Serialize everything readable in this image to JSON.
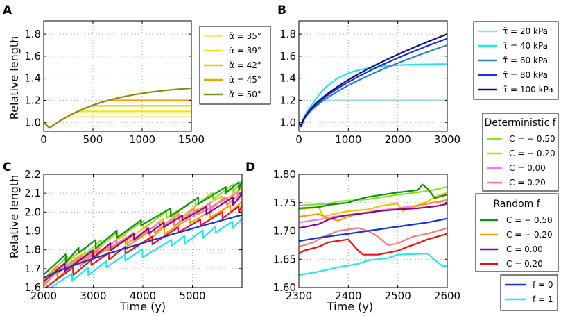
{
  "figure": {
    "shared_ylabel_top": "Relative length",
    "shared_ylabel_bottom": "Relative length",
    "xlabel_C": "Time (y)",
    "xlabel_D": "Time (y)"
  },
  "chart_data": [
    {
      "panel": "A",
      "type": "line",
      "xlim": [
        0,
        1500
      ],
      "ylim": [
        0.92,
        1.92
      ],
      "xticks": [
        0,
        500,
        1000,
        1500
      ],
      "yticks": [
        1.0,
        1.2,
        1.4,
        1.6,
        1.8
      ],
      "xtick_labels": [
        "0",
        "500",
        "1000",
        "1500"
      ],
      "ytick_labels": [
        "1.0",
        "1.2",
        "1.4",
        "1.6",
        "1.8"
      ],
      "ylabel": "Relative length",
      "legend": {
        "placement": "outside-right"
      },
      "series": [
        {
          "label": "α̃ = 35°",
          "color": "#f3ec8a",
          "plateau": 1.05
        },
        {
          "label": "α̃ = 39°",
          "color": "#f2e40e",
          "plateau": 1.1
        },
        {
          "label": "α̃ = 42°",
          "color": "#f2c300",
          "plateau": 1.15
        },
        {
          "label": "α̃ = 45°",
          "color": "#f0a000",
          "plateau": 1.2
        },
        {
          "label": "α̃ = 50°",
          "color": "#8a8a18",
          "plateau": null,
          "end": 1.31
        }
      ]
    },
    {
      "panel": "B",
      "type": "line",
      "xlim": [
        0,
        3000
      ],
      "ylim": [
        0.92,
        1.92
      ],
      "xticks": [
        0,
        1000,
        2000,
        3000
      ],
      "yticks": [
        1.0,
        1.2,
        1.4,
        1.6,
        1.8
      ],
      "xtick_labels": [
        "0",
        "1000",
        "2000",
        "3000"
      ],
      "ytick_labels": [
        "1.0",
        "1.2",
        "1.4",
        "1.6",
        "1.8"
      ],
      "legend": {
        "placement": "outside-right"
      },
      "series": [
        {
          "label": "τ̃ = 20 kPa",
          "color": "#9fd8e6",
          "plateau": 1.2,
          "tau": 120
        },
        {
          "label": "τ̃ = 40 kPa",
          "color": "#1ee6f0",
          "plateau": 1.53,
          "tau": 500
        },
        {
          "label": "τ̃ = 60 kPa",
          "color": "#2585c0",
          "end": 1.7
        },
        {
          "label": "τ̃ = 80 kPa",
          "color": "#1f2fe0",
          "end": 1.76
        },
        {
          "label": "τ̃ = 100 kPa",
          "color": "#10107a",
          "end": 1.8
        }
      ]
    },
    {
      "panel": "C",
      "type": "line",
      "xlim": [
        2000,
        6000
      ],
      "ylim": [
        1.6,
        2.2
      ],
      "xticks": [
        2000,
        3000,
        4000,
        5000
      ],
      "yticks": [
        1.6,
        1.7,
        1.8,
        1.9,
        2.0,
        2.1,
        2.2
      ],
      "xtick_labels": [
        "2000",
        "3000",
        "4000",
        "5000"
      ],
      "ytick_labels": [
        "1.6",
        "1.7",
        "1.8",
        "1.9",
        "2.0",
        "2.1",
        "2.2"
      ],
      "ylabel": "Relative length",
      "xlabel": "Time (y)",
      "series": [
        {
          "label": "Deterministic C = −0.50",
          "color": "#7fe81f",
          "start": 1.68,
          "end": 2.16
        },
        {
          "label": "Deterministic C = −0.20",
          "color": "#f2c500",
          "start": 1.66,
          "end": 2.12
        },
        {
          "label": "Deterministic C = 0.00",
          "color": "#f07ae6",
          "start": 1.65,
          "end": 2.11
        },
        {
          "label": "Deterministic C = 0.20",
          "color": "#f08078",
          "start": 1.64,
          "end": 2.1
        },
        {
          "label": "Random C = −0.50",
          "color": "#138a13",
          "start": 1.7,
          "end": 2.16
        },
        {
          "label": "Random C = −0.20",
          "color": "#f5a000",
          "start": 1.67,
          "end": 2.05
        },
        {
          "label": "Random C = 0.00",
          "color": "#900090",
          "start": 1.66,
          "end": 2.09
        },
        {
          "label": "Random C = 0.20",
          "color": "#ee1010",
          "start": 1.62,
          "end": 2.03
        },
        {
          "label": "f = 0",
          "color": "#1530e0",
          "start": 1.65,
          "end": 1.985
        },
        {
          "label": "f = 1",
          "color": "#22e6ea",
          "start": 1.6,
          "end": 1.96
        }
      ]
    },
    {
      "panel": "D",
      "type": "line",
      "xlim": [
        2300,
        2600
      ],
      "ylim": [
        1.6,
        1.8
      ],
      "xticks": [
        2300,
        2400,
        2500,
        2600
      ],
      "yticks": [
        1.6,
        1.65,
        1.7,
        1.75,
        1.8
      ],
      "xtick_labels": [
        "2300",
        "2400",
        "2500",
        "2600"
      ],
      "ytick_labels": [
        "1.60",
        "1.65",
        "1.70",
        "1.75",
        "1.80"
      ],
      "xlabel": "Time (y)",
      "series": [
        {
          "label": "Deterministic C = −0.50",
          "color": "#7fe81f",
          "pts": [
            [
              2300,
              1.745
            ],
            [
              2360,
              1.748
            ],
            [
              2380,
              1.752
            ],
            [
              2440,
              1.756
            ],
            [
              2470,
              1.76
            ],
            [
              2500,
              1.764
            ],
            [
              2540,
              1.768
            ],
            [
              2570,
              1.772
            ],
            [
              2590,
              1.776
            ],
            [
              2600,
              1.778
            ]
          ]
        },
        {
          "label": "Deterministic C = −0.20",
          "color": "#f2c500",
          "pts": [
            [
              2300,
              1.738
            ],
            [
              2340,
              1.742
            ],
            [
              2350,
              1.725
            ],
            [
              2370,
              1.73
            ],
            [
              2400,
              1.735
            ],
            [
              2440,
              1.738
            ],
            [
              2470,
              1.745
            ],
            [
              2500,
              1.748
            ],
            [
              2510,
              1.735
            ],
            [
              2530,
              1.742
            ],
            [
              2560,
              1.752
            ],
            [
              2580,
              1.762
            ],
            [
              2600,
              1.768
            ]
          ]
        },
        {
          "label": "Deterministic C = 0.00",
          "color": "#f07ae6",
          "pts": [
            [
              2300,
              1.715
            ],
            [
              2340,
              1.72
            ],
            [
              2370,
              1.725
            ],
            [
              2400,
              1.728
            ],
            [
              2430,
              1.732
            ],
            [
              2460,
              1.736
            ],
            [
              2500,
              1.74
            ],
            [
              2540,
              1.745
            ],
            [
              2570,
              1.75
            ],
            [
              2600,
              1.755
            ]
          ]
        },
        {
          "label": "Deterministic C = 0.20",
          "color": "#f08078",
          "pts": [
            [
              2300,
              1.672
            ],
            [
              2330,
              1.68
            ],
            [
              2350,
              1.69
            ],
            [
              2380,
              1.7
            ],
            [
              2420,
              1.705
            ],
            [
              2440,
              1.7
            ],
            [
              2460,
              1.69
            ],
            [
              2480,
              1.675
            ],
            [
              2500,
              1.678
            ],
            [
              2530,
              1.69
            ],
            [
              2560,
              1.695
            ],
            [
              2600,
              1.705
            ]
          ]
        },
        {
          "label": "Random C = −0.50",
          "color": "#138a13",
          "pts": [
            [
              2300,
              1.74
            ],
            [
              2340,
              1.742
            ],
            [
              2360,
              1.746
            ],
            [
              2400,
              1.75
            ],
            [
              2420,
              1.756
            ],
            [
              2440,
              1.76
            ],
            [
              2470,
              1.764
            ],
            [
              2500,
              1.768
            ],
            [
              2540,
              1.772
            ],
            [
              2550,
              1.782
            ],
            [
              2560,
              1.775
            ],
            [
              2575,
              1.758
            ],
            [
              2590,
              1.762
            ],
            [
              2600,
              1.764
            ]
          ]
        },
        {
          "label": "Random C = −0.20",
          "color": "#f5a000",
          "pts": [
            [
              2300,
              1.725
            ],
            [
              2340,
              1.73
            ],
            [
              2360,
              1.722
            ],
            [
              2380,
              1.718
            ],
            [
              2400,
              1.725
            ],
            [
              2420,
              1.73
            ],
            [
              2460,
              1.735
            ],
            [
              2500,
              1.738
            ],
            [
              2530,
              1.742
            ],
            [
              2560,
              1.748
            ],
            [
              2590,
              1.752
            ],
            [
              2600,
              1.755
            ]
          ]
        },
        {
          "label": "Random C = 0.00",
          "color": "#900090",
          "pts": [
            [
              2300,
              1.705
            ],
            [
              2340,
              1.712
            ],
            [
              2360,
              1.72
            ],
            [
              2380,
              1.725
            ],
            [
              2400,
              1.728
            ],
            [
              2440,
              1.732
            ],
            [
              2460,
              1.735
            ],
            [
              2500,
              1.738
            ],
            [
              2540,
              1.74
            ],
            [
              2580,
              1.744
            ],
            [
              2600,
              1.748
            ]
          ]
        },
        {
          "label": "Random C = 0.20",
          "color": "#ee1010",
          "pts": [
            [
              2300,
              1.66
            ],
            [
              2310,
              1.665
            ],
            [
              2340,
              1.672
            ],
            [
              2360,
              1.68
            ],
            [
              2400,
              1.685
            ],
            [
              2420,
              1.665
            ],
            [
              2430,
              1.658
            ],
            [
              2460,
              1.658
            ],
            [
              2500,
              1.665
            ],
            [
              2520,
              1.672
            ],
            [
              2540,
              1.678
            ],
            [
              2560,
              1.685
            ],
            [
              2580,
              1.69
            ],
            [
              2600,
              1.695
            ]
          ]
        },
        {
          "label": "f = 0",
          "color": "#1530e0",
          "pts": [
            [
              2300,
              1.682
            ],
            [
              2340,
              1.688
            ],
            [
              2400,
              1.695
            ],
            [
              2440,
              1.7
            ],
            [
              2480,
              1.705
            ],
            [
              2520,
              1.71
            ],
            [
              2560,
              1.715
            ],
            [
              2590,
              1.72
            ],
            [
              2600,
              1.722
            ]
          ]
        },
        {
          "label": "f = 1",
          "color": "#22e6ea",
          "pts": [
            [
              2300,
              1.622
            ],
            [
              2340,
              1.628
            ],
            [
              2360,
              1.632
            ],
            [
              2380,
              1.636
            ],
            [
              2420,
              1.642
            ],
            [
              2440,
              1.648
            ],
            [
              2480,
              1.652
            ],
            [
              2500,
              1.658
            ],
            [
              2560,
              1.66
            ],
            [
              2580,
              1.645
            ],
            [
              2590,
              1.638
            ],
            [
              2600,
              1.638
            ]
          ]
        }
      ]
    }
  ],
  "legends": {
    "A": [
      "α̃ = 35°",
      "α̃ = 39°",
      "α̃ = 42°",
      "α̃ = 45°",
      "α̃ = 50°"
    ],
    "B": [
      "τ̃ = 20 kPa",
      "τ̃ = 40 kPa",
      "τ̃ = 60 kPa",
      "τ̃ = 80 kPa",
      "τ̃ = 100 kPa"
    ],
    "det_title": "Deterministic f",
    "det": [
      "C = − 0.50",
      "C = − 0.20",
      "C = 0.00",
      "C = 0.20"
    ],
    "rand_title": "Random f",
    "rand": [
      "C = − 0.50",
      "C = − 0.20",
      "C = 0.00",
      "C = 0.20"
    ],
    "f": [
      "f = 0",
      "f = 1"
    ]
  },
  "panel_labels": [
    "A",
    "B",
    "C",
    "D"
  ]
}
